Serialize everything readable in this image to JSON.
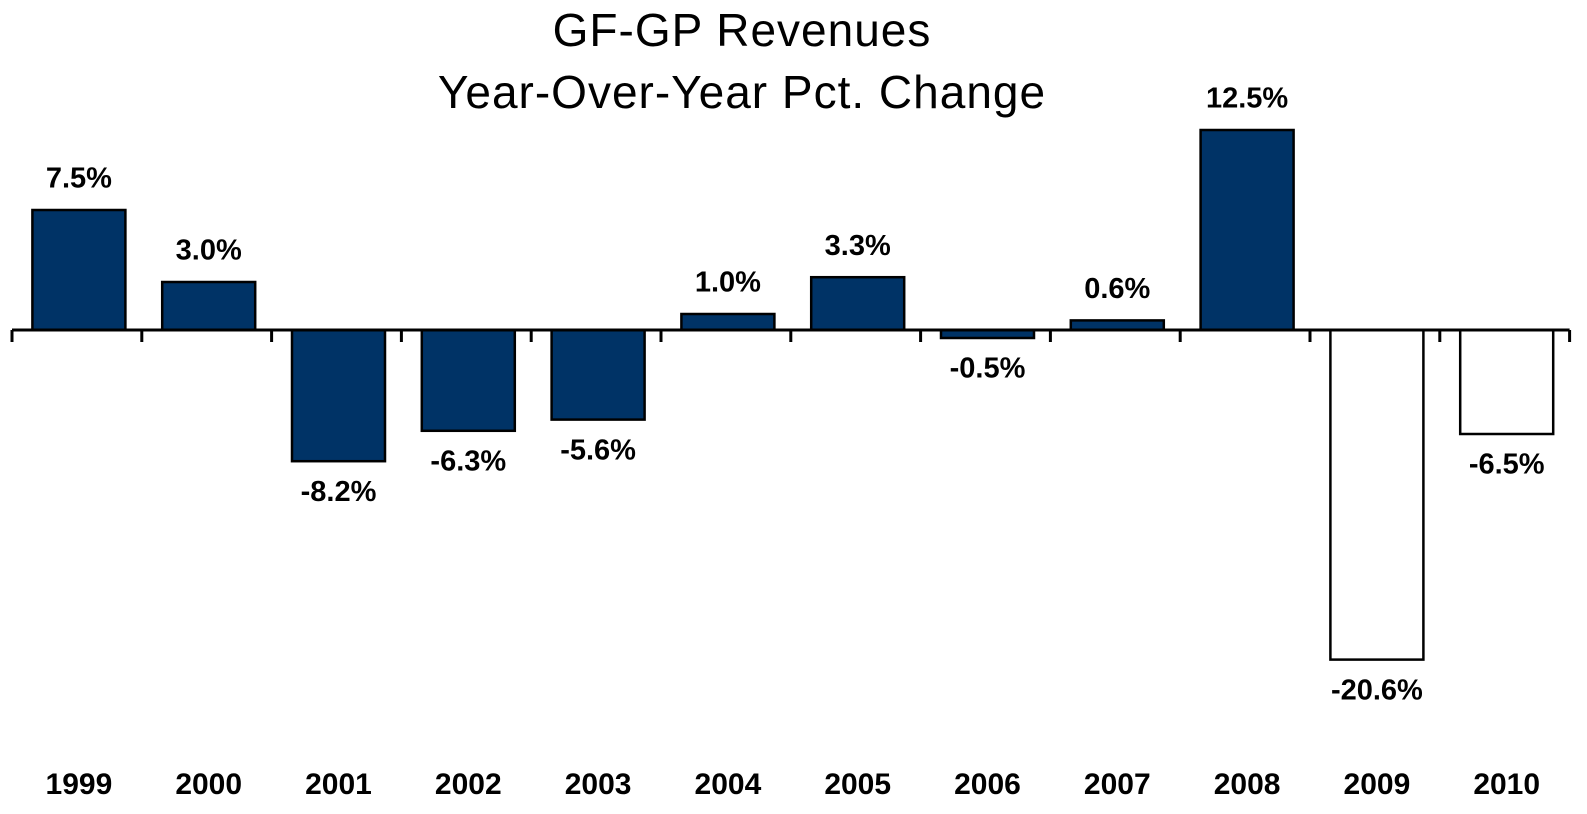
{
  "chart_data": {
    "type": "bar",
    "title": "GF-GP Revenues",
    "subtitle": "Year-Over-Year Pct. Change",
    "categories": [
      "1999",
      "2000",
      "2001",
      "2002",
      "2003",
      "2004",
      "2005",
      "2006",
      "2007",
      "2008",
      "2009",
      "2010"
    ],
    "values": [
      7.5,
      3.0,
      -8.2,
      -6.3,
      -5.6,
      1.0,
      3.3,
      -0.5,
      0.6,
      12.5,
      -20.6,
      -6.5
    ],
    "value_labels": [
      "7.5%",
      "3.0%",
      "-8.2%",
      "-6.3%",
      "-5.6%",
      "1.0%",
      "3.3%",
      "-0.5%",
      "0.6%",
      "12.5%",
      "-20.6%",
      "-6.5%"
    ],
    "colors": [
      "#003366",
      "#003366",
      "#003366",
      "#003366",
      "#003366",
      "#003366",
      "#003366",
      "#003366",
      "#003366",
      "#003366",
      "#ffffff",
      "#ffffff"
    ]
  }
}
